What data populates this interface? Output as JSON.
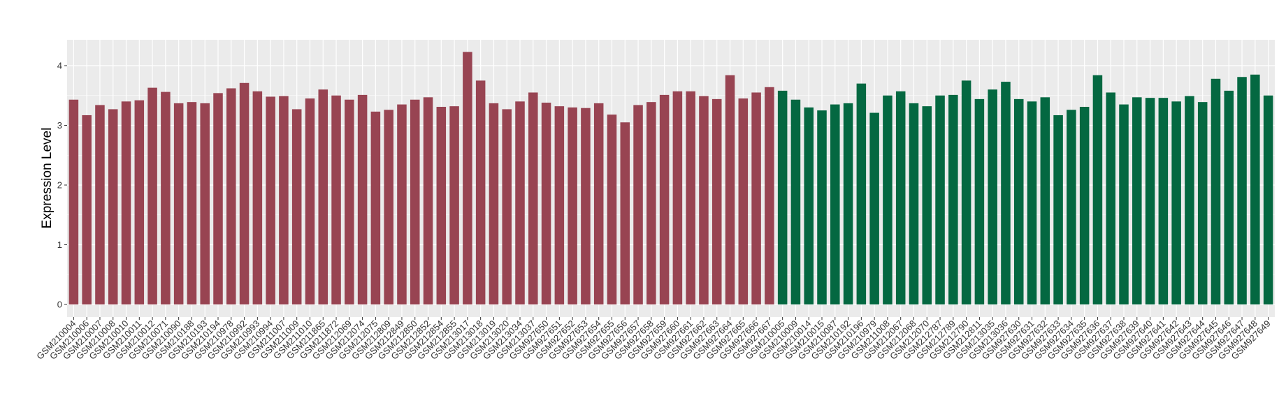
{
  "chart_data": {
    "type": "bar",
    "title": "",
    "xlabel": "",
    "ylabel": "Expression Level",
    "ylim": [
      0,
      4.4
    ],
    "yticks": [
      0,
      1,
      2,
      3,
      4
    ],
    "grid": true,
    "legend": "none",
    "categories": [
      "GSM210004",
      "GSM210006",
      "GSM210007",
      "GSM210008",
      "GSM210010",
      "GSM210011",
      "GSM210012",
      "GSM210071",
      "GSM210090",
      "GSM210188",
      "GSM210193",
      "GSM210194",
      "GSM210978",
      "GSM210992",
      "GSM210993",
      "GSM210994",
      "GSM211007",
      "GSM211009",
      "GSM211010",
      "GSM211865",
      "GSM211872",
      "GSM212069",
      "GSM212074",
      "GSM212075",
      "GSM212809",
      "GSM212849",
      "GSM212850",
      "GSM212852",
      "GSM212854",
      "GSM212855",
      "GSM213017",
      "GSM213018",
      "GSM213019",
      "GSM213020",
      "GSM213034",
      "GSM213037",
      "GSM927650",
      "GSM927651",
      "GSM927652",
      "GSM927653",
      "GSM927654",
      "GSM927655",
      "GSM927656",
      "GSM927657",
      "GSM927658",
      "GSM927659",
      "GSM927660",
      "GSM927661",
      "GSM927662",
      "GSM927663",
      "GSM927664",
      "GSM927665",
      "GSM927666",
      "GSM927667",
      "GSM210005",
      "GSM210009",
      "GSM210014",
      "GSM210015",
      "GSM210087",
      "GSM210192",
      "GSM210196",
      "GSM210979",
      "GSM211008",
      "GSM212067",
      "GSM212068",
      "GSM212070",
      "GSM212787",
      "GSM212789",
      "GSM212790",
      "GSM212811",
      "GSM213035",
      "GSM213036",
      "GSM927630",
      "GSM927631",
      "GSM927632",
      "GSM927633",
      "GSM927634",
      "GSM927635",
      "GSM927636",
      "GSM927637",
      "GSM927638",
      "GSM927639",
      "GSM927640",
      "GSM927641",
      "GSM927642",
      "GSM927643",
      "GSM927644",
      "GSM927645",
      "GSM927646",
      "GSM927647",
      "GSM927648",
      "GSM927649"
    ],
    "values": [
      3.43,
      3.17,
      3.34,
      3.27,
      3.4,
      3.42,
      3.63,
      3.56,
      3.37,
      3.39,
      3.37,
      3.54,
      3.62,
      3.71,
      3.57,
      3.48,
      3.49,
      3.27,
      3.45,
      3.6,
      3.5,
      3.43,
      3.51,
      3.23,
      3.26,
      3.35,
      3.43,
      3.47,
      3.31,
      3.32,
      4.23,
      3.75,
      3.37,
      3.27,
      3.4,
      3.55,
      3.38,
      3.32,
      3.3,
      3.29,
      3.37,
      3.18,
      3.05,
      3.34,
      3.39,
      3.51,
      3.57,
      3.57,
      3.49,
      3.44,
      3.84,
      3.45,
      3.55,
      3.64,
      3.58,
      3.43,
      3.3,
      3.25,
      3.35,
      3.37,
      3.7,
      3.21,
      3.5,
      3.57,
      3.37,
      3.32,
      3.5,
      3.51,
      3.75,
      3.44,
      3.6,
      3.73,
      3.44,
      3.4,
      3.47,
      3.17,
      3.26,
      3.31,
      3.84,
      3.55,
      3.35,
      3.47,
      3.46,
      3.46,
      3.4,
      3.49,
      3.39,
      3.78,
      3.58,
      3.81,
      3.85,
      3.5
    ],
    "group_split": 54,
    "colors": {
      "group1": "#984452",
      "group2": "#046841",
      "panel_bg": "#ebebeb",
      "grid": "#ffffff",
      "tick_text": "#333333"
    }
  }
}
